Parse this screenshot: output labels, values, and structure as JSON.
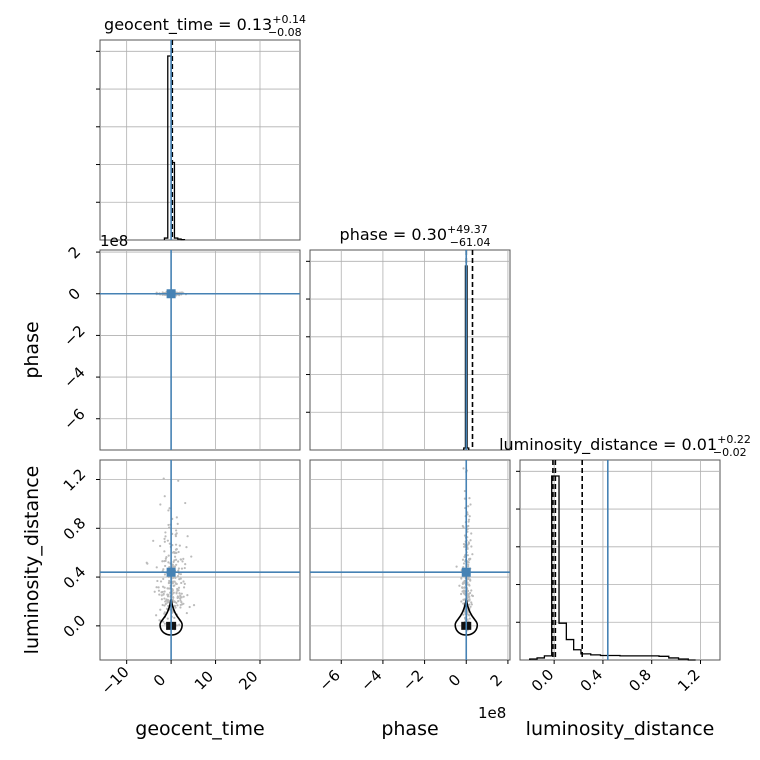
{
  "chart_data": {
    "type": "corner",
    "parameters": [
      {
        "name": "geocent_time",
        "axis_label": "geocent_time",
        "range": [
          -16,
          29
        ],
        "ticks": [
          -10,
          0,
          10,
          20
        ],
        "tick_labels": [
          "−10",
          "0",
          "10",
          "20"
        ],
        "truth": 0,
        "median": 0.13,
        "q_lo": 0.05,
        "q_hi": 0.27,
        "title": {
          "main": "geocent_time = 0.13",
          "plus": "+0.14",
          "minus": "−0.08"
        }
      },
      {
        "name": "phase",
        "axis_label": "phase",
        "range": [
          -7.5,
          2.1
        ],
        "ticks": [
          -6,
          -4,
          -2,
          0,
          2
        ],
        "tick_labels": [
          "−6",
          "−4",
          "−2",
          "0",
          "2"
        ],
        "offset_text": "1e8",
        "truth": 0,
        "median": 0.3,
        "q_lo": -6e-07,
        "q_hi": 5e-07,
        "title": {
          "main": "phase = 0.30",
          "plus": "+49.37",
          "minus": "−61.04"
        }
      },
      {
        "name": "luminosity_distance",
        "axis_label": "luminosity_distance",
        "range": [
          -0.28,
          1.36
        ],
        "ticks": [
          0.0,
          0.4,
          0.8,
          1.2
        ],
        "tick_labels": [
          "0.0",
          "0.4",
          "0.8",
          "1.2"
        ],
        "truth": 0.44,
        "median": 0.01,
        "q_lo": -0.01,
        "q_hi": 0.23,
        "title": {
          "main": "luminosity_distance = 0.01",
          "plus": "+0.22",
          "minus": "−0.02"
        }
      }
    ],
    "row_offset_texts": {
      "phase": "1e8"
    },
    "histograms": {
      "geocent_time": {
        "bins": [
          -1.5,
          -0.75,
          0,
          0.75,
          1.5,
          2.25,
          3.0
        ],
        "counts": [
          0.01,
          0.95,
          0.4,
          0.01,
          0.005,
          0.002
        ]
      },
      "phase": {
        "bins": [
          -0.12,
          -0.04,
          0.04,
          0.12
        ],
        "counts": [
          0.01,
          0.92,
          0.01
        ]
      },
      "luminosity_distance": {
        "bins": [
          -0.2,
          -0.14,
          -0.08,
          -0.02,
          0.04,
          0.1,
          0.16,
          0.22,
          0.3,
          0.38,
          0.46,
          0.54,
          0.62,
          0.7,
          0.78,
          0.86,
          0.94,
          1.02,
          1.1,
          1.16
        ],
        "counts": [
          0.005,
          0.01,
          0.02,
          0.9,
          0.18,
          0.1,
          0.05,
          0.03,
          0.025,
          0.022,
          0.022,
          0.02,
          0.02,
          0.02,
          0.02,
          0.018,
          0.01,
          0.005,
          0.0
        ]
      }
    },
    "grid": true,
    "truth_color": "#4682b4",
    "colors": {
      "axis": "#000000",
      "grid": "#b0b0b0",
      "scatter": "#bbbbbb",
      "contour": "#000000"
    }
  }
}
